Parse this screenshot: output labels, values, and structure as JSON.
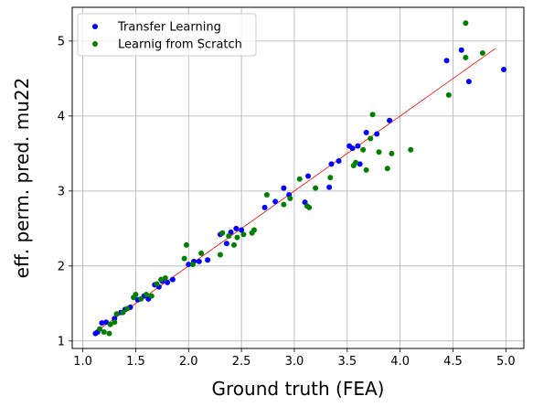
{
  "chart_data": {
    "type": "scatter",
    "xlabel": "Ground truth (FEA)",
    "ylabel": "eff. perm. pred. mu22",
    "xlim": [
      0.9,
      5.17
    ],
    "ylim": [
      0.9,
      5.45
    ],
    "xticks": [
      "1.0",
      "1.5",
      "2.0",
      "2.5",
      "3.0",
      "3.5",
      "4.0",
      "4.5",
      "5.0"
    ],
    "yticks": [
      "1",
      "2",
      "3",
      "4",
      "5"
    ],
    "grid": true,
    "legend_position": "top-left",
    "fit_line": {
      "x": [
        1.12,
        4.9
      ],
      "y": [
        1.12,
        4.9
      ],
      "color": "#ff0000"
    },
    "series": [
      {
        "name": "Transfer Learning",
        "color": "#0000ff",
        "points": [
          [
            1.12,
            1.1
          ],
          [
            1.14,
            1.12
          ],
          [
            1.18,
            1.24
          ],
          [
            1.22,
            1.25
          ],
          [
            1.3,
            1.3
          ],
          [
            1.36,
            1.38
          ],
          [
            1.4,
            1.42
          ],
          [
            1.45,
            1.45
          ],
          [
            1.52,
            1.55
          ],
          [
            1.58,
            1.6
          ],
          [
            1.62,
            1.56
          ],
          [
            1.68,
            1.75
          ],
          [
            1.72,
            1.72
          ],
          [
            1.75,
            1.8
          ],
          [
            1.8,
            1.78
          ],
          [
            1.85,
            1.82
          ],
          [
            2.0,
            2.02
          ],
          [
            2.05,
            2.06
          ],
          [
            2.1,
            2.06
          ],
          [
            2.18,
            2.08
          ],
          [
            2.3,
            2.42
          ],
          [
            2.36,
            2.3
          ],
          [
            2.4,
            2.45
          ],
          [
            2.45,
            2.5
          ],
          [
            2.5,
            2.48
          ],
          [
            2.72,
            2.78
          ],
          [
            2.82,
            2.86
          ],
          [
            2.9,
            3.04
          ],
          [
            2.95,
            2.95
          ],
          [
            3.1,
            2.85
          ],
          [
            3.13,
            3.2
          ],
          [
            3.33,
            3.05
          ],
          [
            3.35,
            3.36
          ],
          [
            3.42,
            3.4
          ],
          [
            3.52,
            3.6
          ],
          [
            3.55,
            3.57
          ],
          [
            3.6,
            3.6
          ],
          [
            3.62,
            3.36
          ],
          [
            3.68,
            3.78
          ],
          [
            3.78,
            3.76
          ],
          [
            3.9,
            3.94
          ],
          [
            4.44,
            4.74
          ],
          [
            4.58,
            4.88
          ],
          [
            4.65,
            4.46
          ],
          [
            4.98,
            4.62
          ]
        ]
      },
      {
        "name": "Learnig from Scratch",
        "color": "#008000",
        "points": [
          [
            1.16,
            1.16
          ],
          [
            1.2,
            1.12
          ],
          [
            1.25,
            1.1
          ],
          [
            1.26,
            1.22
          ],
          [
            1.3,
            1.25
          ],
          [
            1.32,
            1.36
          ],
          [
            1.38,
            1.38
          ],
          [
            1.42,
            1.43
          ],
          [
            1.48,
            1.58
          ],
          [
            1.5,
            1.62
          ],
          [
            1.55,
            1.56
          ],
          [
            1.6,
            1.62
          ],
          [
            1.65,
            1.6
          ],
          [
            1.7,
            1.76
          ],
          [
            1.74,
            1.82
          ],
          [
            1.78,
            1.84
          ],
          [
            1.96,
            2.1
          ],
          [
            1.98,
            2.28
          ],
          [
            2.04,
            2.02
          ],
          [
            2.12,
            2.17
          ],
          [
            2.3,
            2.15
          ],
          [
            2.32,
            2.44
          ],
          [
            2.38,
            2.4
          ],
          [
            2.43,
            2.28
          ],
          [
            2.46,
            2.38
          ],
          [
            2.52,
            2.42
          ],
          [
            2.6,
            2.44
          ],
          [
            2.62,
            2.48
          ],
          [
            2.74,
            2.95
          ],
          [
            2.9,
            2.82
          ],
          [
            2.96,
            2.9
          ],
          [
            3.05,
            3.16
          ],
          [
            3.12,
            2.8
          ],
          [
            3.14,
            2.78
          ],
          [
            3.2,
            3.04
          ],
          [
            3.34,
            3.18
          ],
          [
            3.56,
            3.34
          ],
          [
            3.58,
            3.38
          ],
          [
            3.65,
            3.55
          ],
          [
            3.68,
            3.28
          ],
          [
            3.72,
            3.7
          ],
          [
            3.74,
            4.02
          ],
          [
            3.8,
            3.52
          ],
          [
            3.88,
            3.3
          ],
          [
            3.92,
            3.5
          ],
          [
            4.1,
            3.55
          ],
          [
            4.46,
            4.28
          ],
          [
            4.62,
            5.24
          ],
          [
            4.62,
            4.78
          ],
          [
            4.78,
            4.84
          ]
        ]
      }
    ]
  }
}
